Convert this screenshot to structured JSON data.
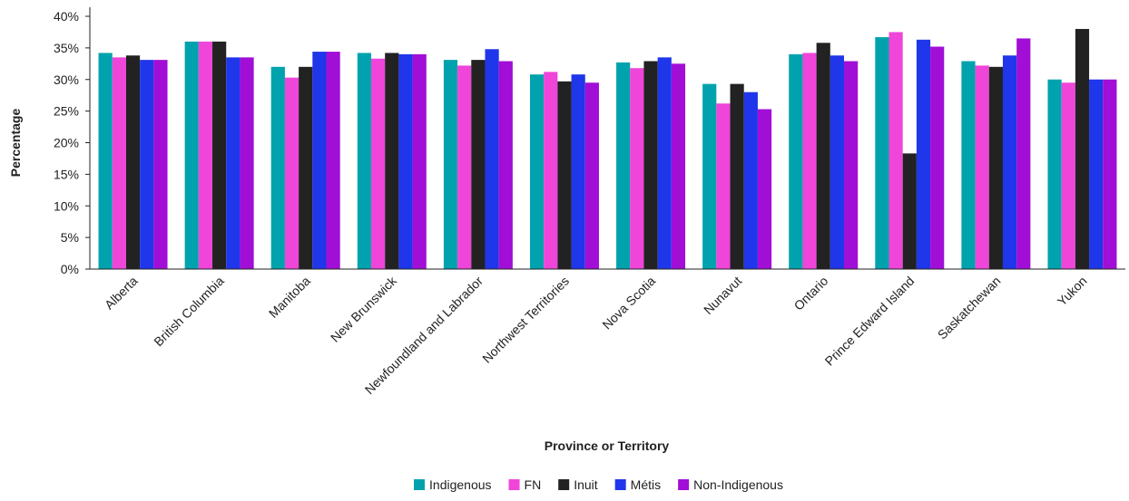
{
  "chart_data": {
    "type": "bar",
    "xlabel": "Province or Territory",
    "ylabel": "Percentage",
    "ylim": [
      0,
      40
    ],
    "yticks": [
      "0%",
      "5%",
      "10%",
      "15%",
      "20%",
      "25%",
      "30%",
      "35%",
      "40%"
    ],
    "grid": false,
    "legend_position": "bottom",
    "categories": [
      "Alberta",
      "British Columbia",
      "Manitoba",
      "New Brunswick",
      "Newfoundland and Labrador",
      "Northwest Territories",
      "Nova Scotia",
      "Nunavut",
      "Ontario",
      "Prince Edward Island",
      "Saskatchewan",
      "Yukon"
    ],
    "series": [
      {
        "name": "Indigenous",
        "color": "#00a3ad",
        "values": [
          34.2,
          36.0,
          32.0,
          34.2,
          33.1,
          30.8,
          32.7,
          29.3,
          34.0,
          36.7,
          32.9,
          30.0
        ]
      },
      {
        "name": "FN",
        "color": "#ef45d9",
        "values": [
          33.5,
          36.0,
          30.3,
          33.3,
          32.2,
          31.2,
          31.8,
          26.2,
          34.2,
          37.5,
          32.2,
          29.5
        ]
      },
      {
        "name": "Inuit",
        "color": "#222222",
        "values": [
          33.8,
          36.0,
          32.0,
          34.2,
          33.1,
          29.7,
          32.9,
          29.3,
          35.8,
          18.3,
          32.0,
          38.0
        ]
      },
      {
        "name": "Métis",
        "color": "#1f36ea",
        "values": [
          33.1,
          33.5,
          34.4,
          34.0,
          34.8,
          30.8,
          33.5,
          28.0,
          33.8,
          36.3,
          33.8,
          30.0
        ]
      },
      {
        "name": "Non-Indigenous",
        "color": "#a10ed6",
        "values": [
          33.1,
          33.5,
          34.4,
          34.0,
          32.9,
          29.5,
          32.5,
          25.3,
          32.9,
          35.2,
          36.5,
          30.0
        ]
      }
    ]
  }
}
